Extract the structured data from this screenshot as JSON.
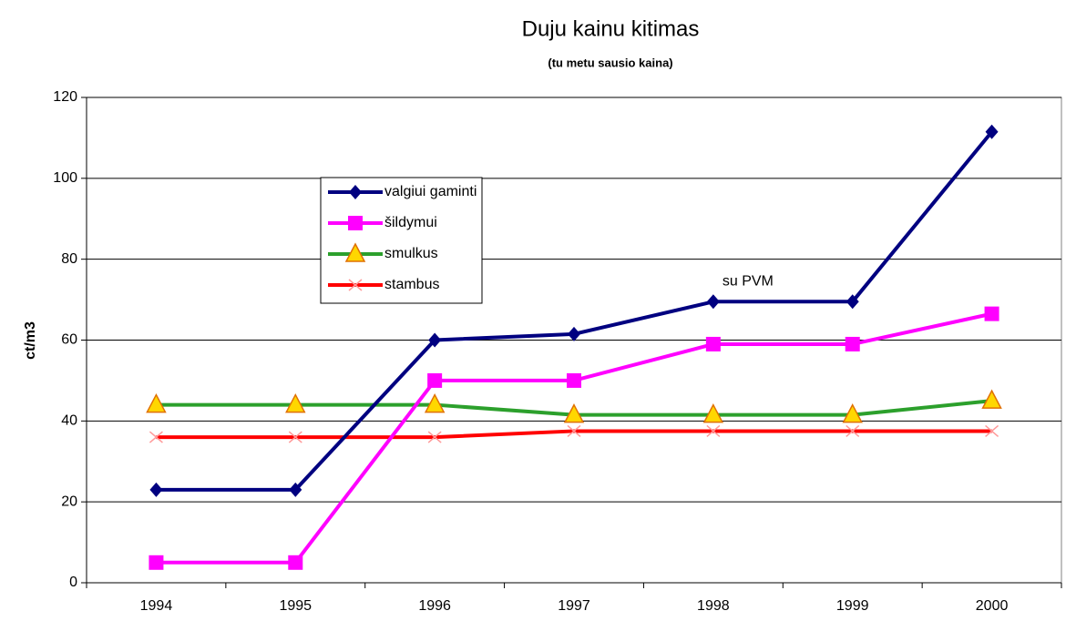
{
  "chart_data": {
    "type": "line",
    "title": "Duju kainu kitimas",
    "subtitle": "(tu metu sausio kaina)",
    "y_label": "ct/m3",
    "annotation": "su PVM",
    "categories": [
      "1994",
      "1995",
      "1996",
      "1997",
      "1998",
      "1999",
      "2000"
    ],
    "series": [
      {
        "name": "valgiui gaminti",
        "color": "#000080",
        "marker": "diamond",
        "values": [
          23,
          23,
          60,
          61.5,
          69.5,
          69.5,
          111.5
        ]
      },
      {
        "name": "šildymui",
        "color": "#ff00ff",
        "marker": "square",
        "values": [
          5,
          5,
          50,
          50,
          59,
          59,
          66.5
        ]
      },
      {
        "name": "smulkus",
        "color": "#2ca02c",
        "marker": "triangle",
        "values": [
          44,
          44,
          44,
          41.5,
          41.5,
          41.5,
          45
        ]
      },
      {
        "name": "stambus",
        "color": "#ff0000",
        "marker": "x",
        "values": [
          36,
          36,
          36,
          37.5,
          37.5,
          37.5,
          37.5
        ]
      }
    ],
    "ylim": [
      0,
      120
    ],
    "yticks": [
      0,
      20,
      40,
      60,
      80,
      100,
      120
    ],
    "grid": true
  }
}
